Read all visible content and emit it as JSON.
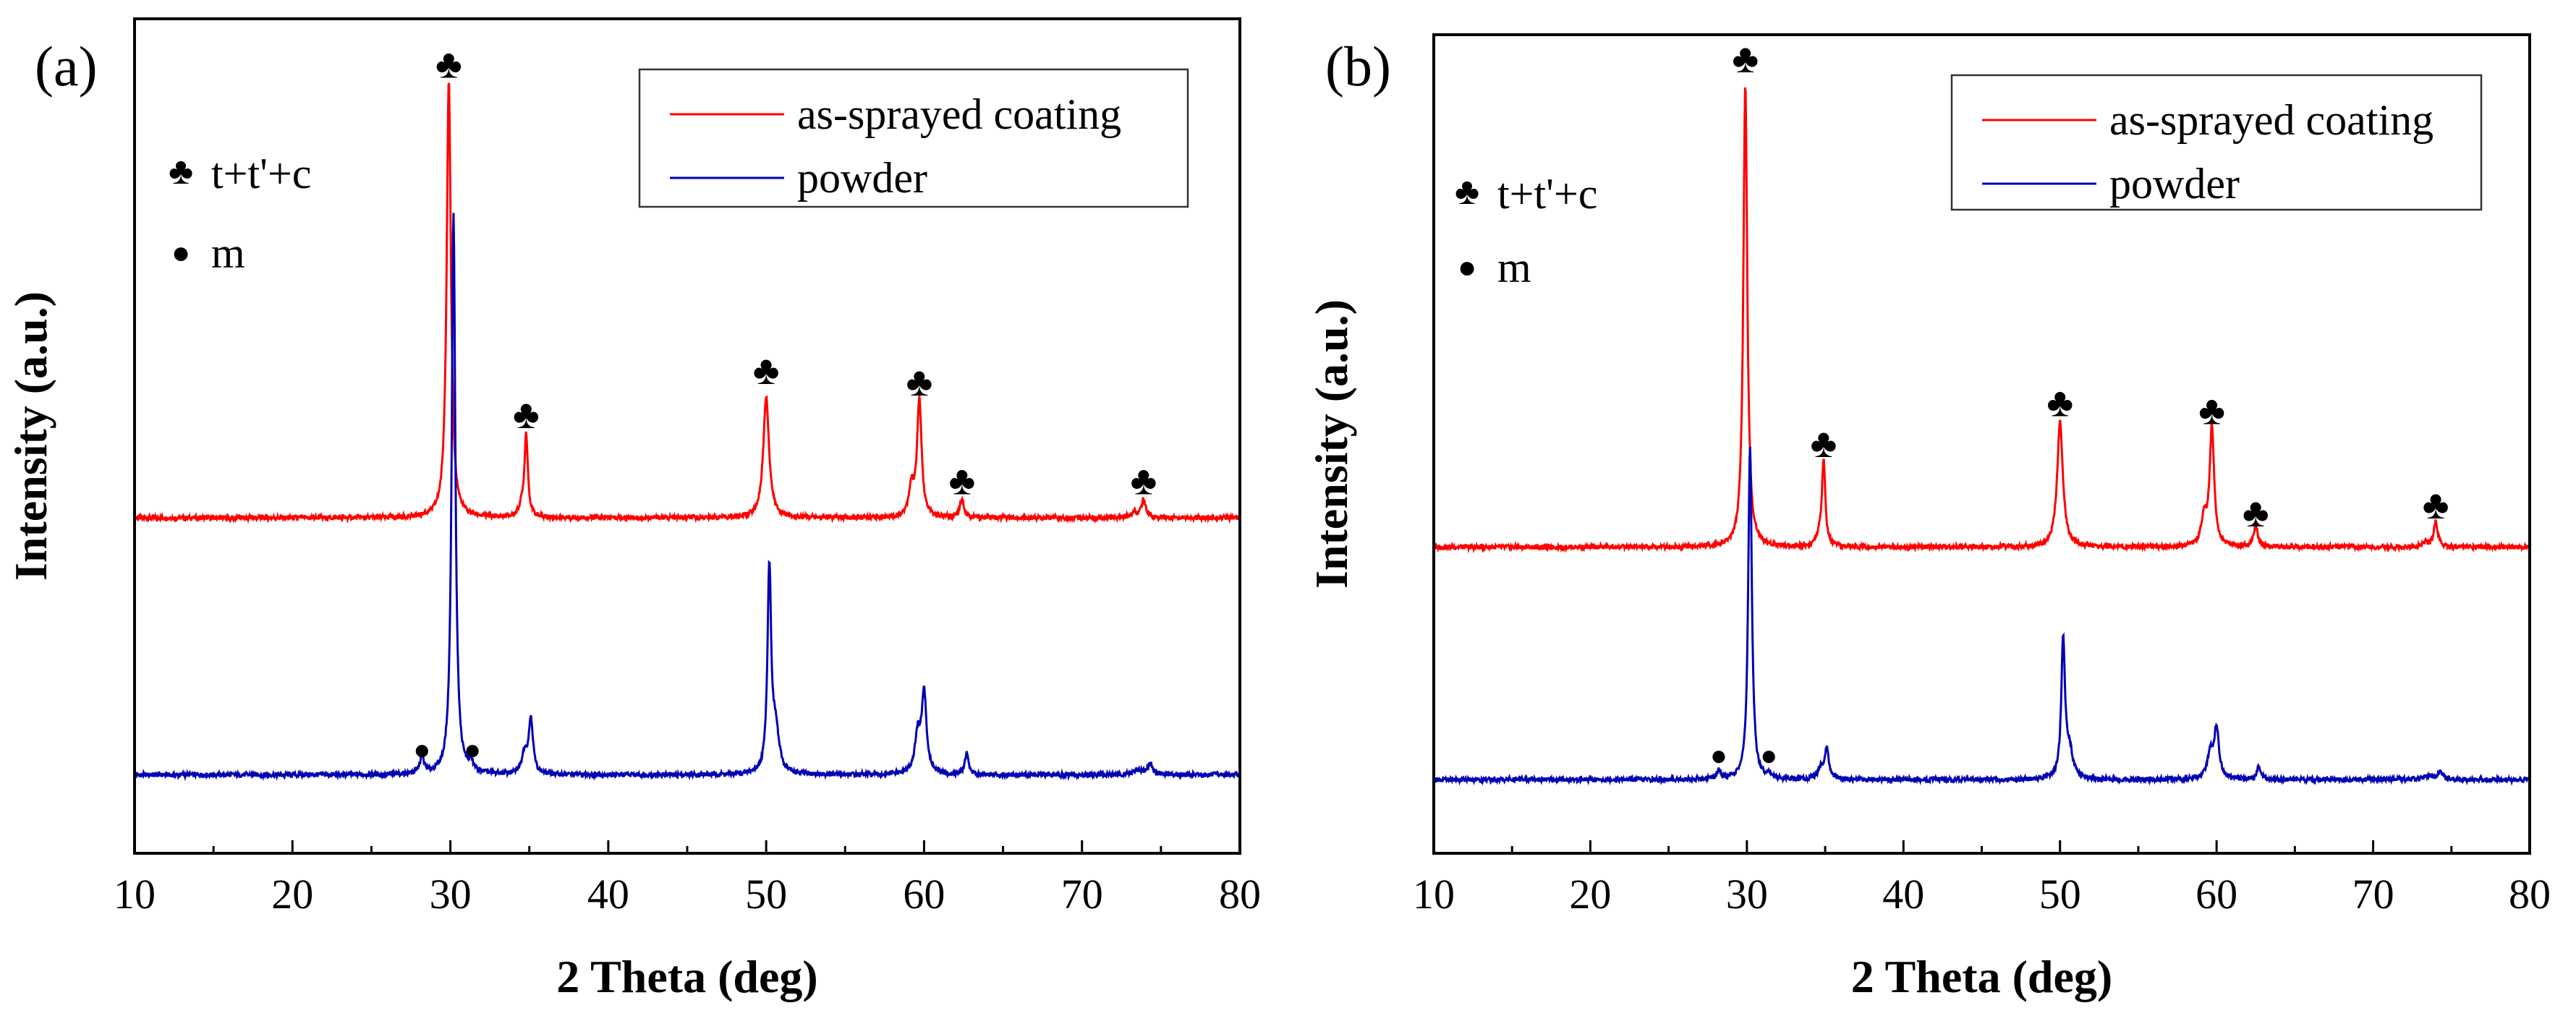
{
  "colors": {
    "coating": "#ff0000",
    "powder": "#0000b4",
    "axis": "#000000"
  },
  "symbols": {
    "club": "♣",
    "dot": "●"
  },
  "chart_data": [
    {
      "type": "line",
      "panel_label": "(a)",
      "xlabel": "2 Theta (deg)",
      "ylabel": "Intensity (a.u.)",
      "xlim": [
        10,
        80
      ],
      "ylim": [
        0,
        100
      ],
      "xticks": [
        10,
        20,
        30,
        40,
        50,
        60,
        70,
        80
      ],
      "legend": {
        "position": "top-right",
        "entries": [
          "as-sprayed coating",
          "powder"
        ]
      },
      "phase_legend": {
        "position": "top-left",
        "entries": [
          "t+t'+c",
          "m"
        ]
      },
      "series": [
        {
          "name": "as-sprayed coating",
          "baseline": 40.2,
          "peaks": [
            {
              "x": 29.9,
              "height": 52.5,
              "width": 0.16
            },
            {
              "x": 34.8,
              "height": 10.0,
              "width": 0.13
            },
            {
              "x": 34.5,
              "height": 1.0,
              "width": 0.2
            },
            {
              "x": 50.0,
              "height": 14.5,
              "width": 0.22
            },
            {
              "x": 59.7,
              "height": 14.0,
              "width": 0.17
            },
            {
              "x": 59.2,
              "height": 3.5,
              "width": 0.2
            },
            {
              "x": 62.4,
              "height": 2.3,
              "width": 0.16
            },
            {
              "x": 73.9,
              "height": 2.2,
              "width": 0.16
            },
            {
              "x": 73.3,
              "height": 0.6,
              "width": 0.25
            }
          ]
        },
        {
          "name": "powder",
          "baseline": 9.4,
          "peaks": [
            {
              "x": 30.2,
              "height": 67.5,
              "width": 0.14
            },
            {
              "x": 28.2,
              "height": 2.0,
              "width": 0.16
            },
            {
              "x": 31.3,
              "height": 1.2,
              "width": 0.16
            },
            {
              "x": 35.1,
              "height": 6.6,
              "width": 0.16
            },
            {
              "x": 34.7,
              "height": 2.5,
              "width": 0.2
            },
            {
              "x": 50.2,
              "height": 24.5,
              "width": 0.14
            },
            {
              "x": 50.6,
              "height": 5.0,
              "width": 0.25
            },
            {
              "x": 59.6,
              "height": 4.5,
              "width": 0.22
            },
            {
              "x": 60.0,
              "height": 9.5,
              "width": 0.18
            },
            {
              "x": 62.7,
              "height": 2.6,
              "width": 0.14
            },
            {
              "x": 73.5,
              "height": 0.6,
              "width": 0.3
            },
            {
              "x": 74.3,
              "height": 1.3,
              "width": 0.2
            }
          ]
        }
      ],
      "markers": [
        {
          "symbol": "club",
          "x": 29.9,
          "y": 94.5
        },
        {
          "symbol": "club",
          "x": 34.8,
          "y": 52.5
        },
        {
          "symbol": "club",
          "x": 50.0,
          "y": 57.8
        },
        {
          "symbol": "club",
          "x": 59.7,
          "y": 56.4
        },
        {
          "symbol": "club",
          "x": 62.4,
          "y": 44.6
        },
        {
          "symbol": "club",
          "x": 73.9,
          "y": 44.6
        },
        {
          "symbol": "dot",
          "x": 28.2,
          "y": 12.5
        },
        {
          "symbol": "dot",
          "x": 31.4,
          "y": 12.5
        }
      ]
    },
    {
      "type": "line",
      "panel_label": "(b)",
      "xlabel": "2 Theta (deg)",
      "ylabel": "Intensity (a.u.)",
      "xlim": [
        10,
        80
      ],
      "ylim": [
        0,
        100
      ],
      "xticks": [
        10,
        20,
        30,
        40,
        50,
        60,
        70,
        80
      ],
      "legend": {
        "position": "top-right",
        "entries": [
          "as-sprayed coating",
          "powder"
        ]
      },
      "phase_legend": {
        "position": "top-left",
        "entries": [
          "t+t'+c",
          "m"
        ]
      },
      "series": [
        {
          "name": "as-sprayed coating",
          "baseline": 37.4,
          "peaks": [
            {
              "x": 29.9,
              "height": 56.6,
              "width": 0.15
            },
            {
              "x": 34.9,
              "height": 10.4,
              "width": 0.13
            },
            {
              "x": 34.6,
              "height": 1.0,
              "width": 0.2
            },
            {
              "x": 50.0,
              "height": 15.3,
              "width": 0.22
            },
            {
              "x": 59.7,
              "height": 14.6,
              "width": 0.17
            },
            {
              "x": 59.2,
              "height": 3.5,
              "width": 0.2
            },
            {
              "x": 62.5,
              "height": 2.7,
              "width": 0.15
            },
            {
              "x": 74.0,
              "height": 3.1,
              "width": 0.15
            },
            {
              "x": 73.4,
              "height": 0.6,
              "width": 0.25
            }
          ]
        },
        {
          "name": "powder",
          "baseline": 9.0,
          "peaks": [
            {
              "x": 30.2,
              "height": 40.7,
              "width": 0.14
            },
            {
              "x": 28.2,
              "height": 1.0,
              "width": 0.16
            },
            {
              "x": 31.4,
              "height": 0.6,
              "width": 0.16
            },
            {
              "x": 35.1,
              "height": 3.7,
              "width": 0.16
            },
            {
              "x": 34.7,
              "height": 1.3,
              "width": 0.2
            },
            {
              "x": 50.2,
              "height": 17.0,
              "width": 0.14
            },
            {
              "x": 50.6,
              "height": 3.3,
              "width": 0.25
            },
            {
              "x": 59.6,
              "height": 3.0,
              "width": 0.22
            },
            {
              "x": 60.0,
              "height": 6.2,
              "width": 0.18
            },
            {
              "x": 62.7,
              "height": 1.7,
              "width": 0.14
            },
            {
              "x": 73.5,
              "height": 0.5,
              "width": 0.3
            },
            {
              "x": 74.3,
              "height": 0.9,
              "width": 0.2
            }
          ]
        }
      ],
      "markers": [
        {
          "symbol": "club",
          "x": 29.9,
          "y": 97.0
        },
        {
          "symbol": "club",
          "x": 34.9,
          "y": 50.0
        },
        {
          "symbol": "club",
          "x": 50.0,
          "y": 55.0
        },
        {
          "symbol": "club",
          "x": 59.7,
          "y": 54.0
        },
        {
          "symbol": "club",
          "x": 62.5,
          "y": 41.5
        },
        {
          "symbol": "club",
          "x": 74.0,
          "y": 42.5
        },
        {
          "symbol": "dot",
          "x": 28.2,
          "y": 12.0
        },
        {
          "symbol": "dot",
          "x": 31.4,
          "y": 12.0
        }
      ]
    }
  ]
}
